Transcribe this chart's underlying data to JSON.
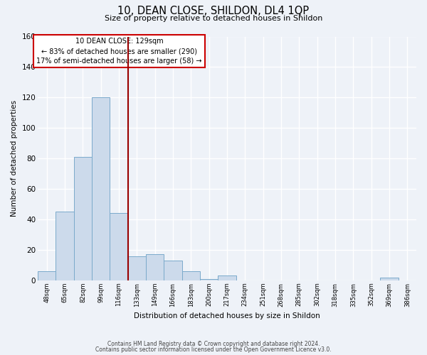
{
  "title": "10, DEAN CLOSE, SHILDON, DL4 1QP",
  "subtitle": "Size of property relative to detached houses in Shildon",
  "xlabel": "Distribution of detached houses by size in Shildon",
  "ylabel": "Number of detached properties",
  "bin_labels": [
    "48sqm",
    "65sqm",
    "82sqm",
    "99sqm",
    "116sqm",
    "133sqm",
    "149sqm",
    "166sqm",
    "183sqm",
    "200sqm",
    "217sqm",
    "234sqm",
    "251sqm",
    "268sqm",
    "285sqm",
    "302sqm",
    "318sqm",
    "335sqm",
    "352sqm",
    "369sqm",
    "386sqm"
  ],
  "bar_values": [
    6,
    45,
    81,
    120,
    44,
    16,
    17,
    13,
    6,
    1,
    3,
    0,
    0,
    0,
    0,
    0,
    0,
    0,
    0,
    2,
    0
  ],
  "bar_color": "#ccdaeb",
  "bar_edge_color": "#7aaacb",
  "ylim": [
    0,
    160
  ],
  "yticks": [
    0,
    20,
    40,
    60,
    80,
    100,
    120,
    140,
    160
  ],
  "vline_color": "#990000",
  "annotation_lines": [
    "10 DEAN CLOSE: 129sqm",
    "← 83% of detached houses are smaller (290)",
    "17% of semi-detached houses are larger (58) →"
  ],
  "bg_color": "#eef2f8",
  "grid_color": "#ffffff",
  "footer_line1": "Contains HM Land Registry data © Crown copyright and database right 2024.",
  "footer_line2": "Contains public sector information licensed under the Open Government Licence v3.0."
}
